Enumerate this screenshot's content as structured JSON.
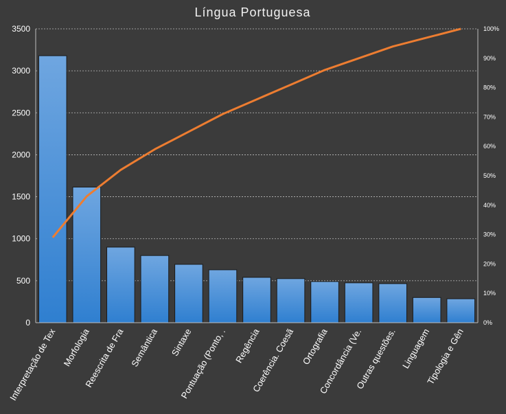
{
  "chart_data": {
    "type": "bar",
    "title": "Língua Portuguesa",
    "categories": [
      "Interpretação de Tex",
      "Morfologia",
      "Reescrita de Fra",
      "Semântica",
      "Sintaxe",
      "Pontuação (Ponto, .",
      "Regência",
      "Coerência. Coesã",
      "Ortografia",
      "Concordância (Ve.",
      "Outras questões.",
      "Linguagem",
      "Tipologia e Gên"
    ],
    "series": [
      {
        "type": "bar",
        "values": [
          3180,
          1615,
          900,
          800,
          695,
          630,
          540,
          525,
          490,
          475,
          465,
          300,
          285
        ]
      },
      {
        "type": "line",
        "axis": "right",
        "values": [
          29,
          43,
          52,
          59,
          65,
          71,
          76,
          81,
          86,
          90,
          94,
          97,
          100
        ]
      }
    ],
    "left_axis": {
      "ylim": [
        0,
        3500
      ],
      "ticks": [
        "0",
        "500",
        "1000",
        "1500",
        "2000",
        "2500",
        "3000",
        "3500"
      ]
    },
    "right_axis": {
      "ylim": [
        0,
        100
      ],
      "ticks": [
        "0%",
        "10%",
        "20%",
        "30%",
        "40%",
        "50%",
        "60%",
        "70%",
        "80%",
        "90%",
        "100%"
      ]
    },
    "grid": true,
    "legend": "none",
    "colors": {
      "bar_top": "#6fa6e0",
      "bar_bottom": "#2f7fd0",
      "line": "#ed7d31",
      "background": "#3b3b3b"
    }
  }
}
